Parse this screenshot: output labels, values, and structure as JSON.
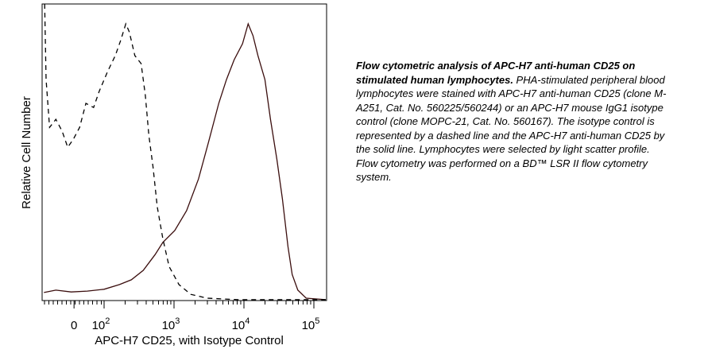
{
  "chart_data": {
    "type": "line",
    "title": "",
    "xlabel": "APC-H7 CD25, with Isotype Control",
    "ylabel": "Relative Cell Number",
    "x_scale": "biexponential (values in decade units, 10^2 = 2)",
    "xlim": [
      1.11,
      5.24
    ],
    "ylim": [
      0,
      100
    ],
    "x_ticks": [
      {
        "label": "0",
        "pos": 1.57
      },
      {
        "label": "10",
        "sup": "2",
        "pos": 2
      },
      {
        "label": "10",
        "sup": "3",
        "pos": 3
      },
      {
        "label": "10",
        "sup": "4",
        "pos": 4
      },
      {
        "label": "10",
        "sup": "5",
        "pos": 5
      }
    ],
    "series": [
      {
        "name": "APC-H7 anti-human CD25",
        "style": "solid",
        "color": "#3a0d0d",
        "x": [
          1.14,
          1.31,
          1.53,
          1.76,
          2.0,
          2.22,
          2.39,
          2.56,
          2.73,
          2.84,
          3.01,
          3.18,
          3.35,
          3.49,
          3.64,
          3.75,
          3.86,
          3.98,
          4.06,
          4.13,
          4.2,
          4.3,
          4.38,
          4.47,
          4.55,
          4.63,
          4.69,
          4.77,
          4.89,
          5.17
        ],
        "y": [
          2.7,
          3.5,
          2.9,
          3.2,
          3.8,
          5.4,
          7.0,
          10.2,
          15.5,
          19.6,
          23.6,
          30.3,
          41.0,
          53.1,
          66.5,
          74.5,
          81.2,
          86.6,
          93.3,
          89.3,
          82.6,
          74.5,
          61.1,
          47.7,
          34.3,
          18.2,
          8.8,
          3.5,
          0.8,
          0.3
        ]
      },
      {
        "name": "Isotype control",
        "style": "dashed",
        "color": "#000000",
        "x": [
          1.15,
          1.17,
          1.22,
          1.31,
          1.4,
          1.48,
          1.56,
          1.65,
          1.74,
          1.85,
          1.93,
          2.05,
          2.16,
          2.24,
          2.31,
          2.36,
          2.44,
          2.53,
          2.59,
          2.64,
          2.7,
          2.76,
          2.84,
          2.93,
          3.07,
          3.24,
          3.47,
          3.92,
          5.17
        ],
        "y": [
          100,
          74.5,
          58.4,
          61.1,
          57.1,
          51.7,
          54.4,
          58.4,
          66.5,
          65.1,
          70.5,
          77.2,
          82.6,
          87.9,
          93.3,
          90.6,
          82.6,
          79.9,
          69.2,
          55.8,
          45.0,
          31.6,
          20.9,
          11.5,
          5.4,
          2.1,
          0.8,
          0.3,
          0.3
        ]
      }
    ]
  },
  "caption": {
    "bold": "Flow cytometric analysis of APC-H7 anti-human CD25 on stimulated human lymphocytes.",
    "body": " PHA-stimulated peripheral blood lymphocytes were stained with APC-H7 anti-human CD25 (clone M-A251, Cat. No. 560225/560244) or an APC-H7 mouse IgG1 isotype control (clone MOPC-21, Cat. No. 560167).  The isotype control is represented by a dashed line and the APC-H7 anti-human CD25 by the solid line.  Lymphocytes were selected by light scatter profile. Flow cytometry was performed on a BD™ LSR II flow cytometry system."
  }
}
